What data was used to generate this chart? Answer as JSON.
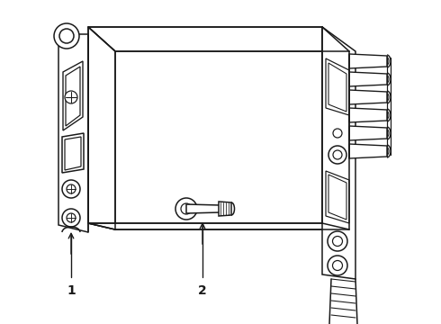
{
  "background_color": "#ffffff",
  "line_color": "#1a1a1a",
  "line_width": 1.1,
  "label1": "1",
  "label2": "2",
  "figsize": [
    4.9,
    3.6
  ],
  "dpi": 100
}
